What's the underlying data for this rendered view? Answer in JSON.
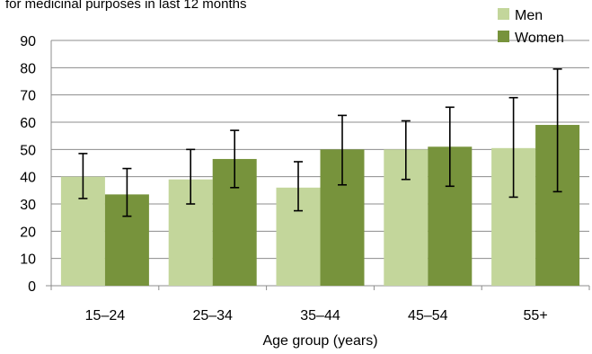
{
  "chart_data": {
    "type": "bar",
    "title": "for medicinal purposes in last 12 months",
    "xlabel": "Age group (years)",
    "ylabel": "",
    "categories": [
      "15–24",
      "25–34",
      "35–44",
      "45–54",
      "55+"
    ],
    "ylim": [
      0,
      90
    ],
    "yticks": [
      0,
      10,
      20,
      30,
      40,
      50,
      60,
      70,
      80,
      90
    ],
    "grid": true,
    "legend_position": "top-right",
    "series": [
      {
        "name": "Men",
        "color": "#c3d69b",
        "values": [
          40,
          39,
          36,
          50,
          50.5
        ],
        "error_low": [
          32,
          30,
          27.5,
          39,
          32.5
        ],
        "error_high": [
          48.5,
          50,
          45.5,
          60.5,
          69
        ]
      },
      {
        "name": "Women",
        "color": "#77933c",
        "values": [
          33.5,
          46.5,
          50,
          51,
          59
        ],
        "error_low": [
          25.5,
          36,
          37,
          36.5,
          34.5
        ],
        "error_high": [
          43,
          57,
          62.5,
          65.5,
          79.5
        ]
      }
    ]
  }
}
